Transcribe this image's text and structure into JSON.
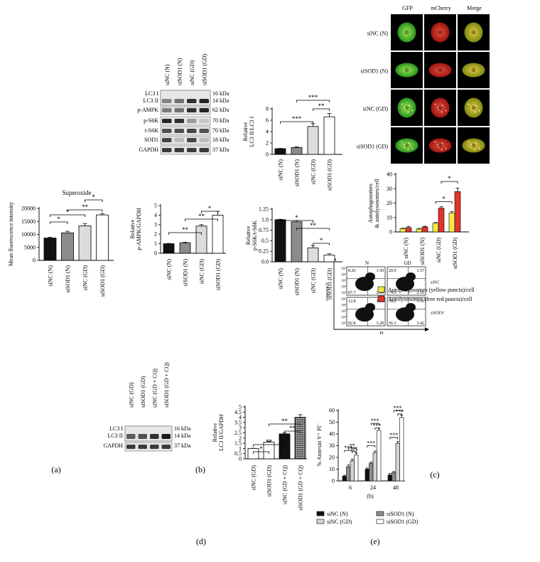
{
  "panel_labels": {
    "a": "(a)",
    "b": "(b)",
    "c": "(c)",
    "d": "(d)",
    "e": "(e)"
  },
  "blot_b": {
    "lanes": [
      "siNC (N)",
      "siSOD1 (N)",
      "siNC (GD)",
      "siSOD1 (GD)"
    ],
    "rows": [
      {
        "protein": "LC3 I",
        "kda": "16 kDa"
      },
      {
        "protein": "LC3 II",
        "kda": "14 kDa"
      },
      {
        "protein": "p-AMPK",
        "kda": "62 kDa"
      },
      {
        "protein": "p-S6K",
        "kda": "70 kDa"
      },
      {
        "protein": "t-S6K",
        "kda": "70 kDa"
      },
      {
        "protein": "SOD1",
        "kda": "18 kDa"
      },
      {
        "protein": "GAPDH",
        "kda": "37 kDa"
      }
    ]
  },
  "blot_d": {
    "lanes": [
      "siNC (GD)",
      "siSOD1 (GD)",
      "siNC (GD + CQ)",
      "siSOD1 (GD + CQ)"
    ],
    "rows": [
      {
        "protein": "LC3 I",
        "kda": "16 kDa"
      },
      {
        "protein": "LC3 II",
        "kda": "14 kDa"
      },
      {
        "protein": "GAPDH",
        "kda": "37 kDa"
      }
    ]
  },
  "microscopy_c": {
    "columns": [
      "GFP",
      "mCherry",
      "Merge"
    ],
    "rows": [
      "siNC (N)",
      "siSOD1 (N)",
      "siNC (GD)",
      "siSOD1 (GD)"
    ]
  },
  "flow_e": {
    "x_axis": "PI",
    "y_axis": "Annexin V",
    "columns": [
      "N",
      "GD"
    ],
    "rows": [
      "siNC",
      "siSOD1"
    ],
    "decades": [
      "10⁵",
      "10⁴",
      "10³",
      "10²",
      "10¹"
    ],
    "quadrants": [
      {
        "ul": "8.26",
        "ur": "1.50",
        "ll": "87.7",
        "lr": "2.44"
      },
      {
        "ul": "20.9",
        "ur": "1.57",
        "ll": "74.9",
        "lr": "2.16"
      },
      {
        "ul": "12.8",
        "ur": "1.08",
        "ll": "82.8",
        "lr": "3.28"
      },
      {
        "ul": "39.2",
        "ur": "1.10",
        "ll": "56.3",
        "lr": "3.42"
      }
    ]
  },
  "chart_data": [
    {
      "id": "a",
      "type": "bar",
      "title": "Superoxide",
      "ylabel": "Mean fluorescence intensity",
      "categories": [
        "siNC (N)",
        "siSOD1 (N)",
        "siNC (GD)",
        "siSOD1 (GD)"
      ],
      "values": [
        8600,
        10600,
        13300,
        17500
      ],
      "errors": [
        300,
        600,
        800,
        500
      ],
      "ylim": [
        0,
        20000
      ],
      "yticks": [
        "0",
        "5000",
        "10000",
        "15000",
        "20000"
      ],
      "fills": [
        "#111111",
        "#8c8c8c",
        "#dcdcdc",
        "#ffffff"
      ],
      "significance": [
        {
          "from": 0,
          "to": 1,
          "label": "*"
        },
        {
          "from": 0,
          "to": 2,
          "label": "*"
        },
        {
          "from": 1,
          "to": 3,
          "label": "**"
        },
        {
          "from": 2,
          "to": 3,
          "label": "*"
        }
      ]
    },
    {
      "id": "b1",
      "type": "bar",
      "ylabel": "Relative LC3 II/LC3 I",
      "categories": [
        "siNC (N)",
        "siSOD1 (N)",
        "siNC (GD)",
        "siSOD1 (GD)"
      ],
      "values": [
        1.0,
        1.2,
        4.9,
        6.6
      ],
      "errors": [
        0.05,
        0.1,
        0.5,
        0.6
      ],
      "ylim": [
        0,
        8
      ],
      "yticks": [
        "0",
        "2",
        "4",
        "6",
        "8"
      ],
      "fills": [
        "#111111",
        "#8c8c8c",
        "#dcdcdc",
        "#ffffff"
      ],
      "significance": [
        {
          "from": 0,
          "to": 2,
          "label": "***"
        },
        {
          "from": 2,
          "to": 3,
          "label": "**"
        },
        {
          "from": 1,
          "to": 3,
          "label": "***"
        }
      ]
    },
    {
      "id": "b2",
      "type": "bar",
      "ylabel": "Relative p-AMPK/GAPDH",
      "categories": [
        "siNC (N)",
        "siSOD1 (N)",
        "siNC (GD)",
        "siSOD1 (GD)"
      ],
      "values": [
        1.0,
        1.1,
        2.85,
        4.0
      ],
      "errors": [
        0.03,
        0.05,
        0.15,
        0.4
      ],
      "ylim": [
        0,
        5
      ],
      "yticks": [
        "0",
        "1",
        "2",
        "3",
        "4",
        "5"
      ],
      "fills": [
        "#111111",
        "#8c8c8c",
        "#dcdcdc",
        "#ffffff"
      ],
      "significance": [
        {
          "from": 0,
          "to": 2,
          "label": "**"
        },
        {
          "from": 1,
          "to": 3,
          "label": "**"
        },
        {
          "from": 2,
          "to": 3,
          "label": "*"
        }
      ]
    },
    {
      "id": "b3",
      "type": "bar",
      "ylabel": "Relative p-S6K/t-S6K",
      "categories": [
        "siNC (N)",
        "siSOD1 (N)",
        "siNC (GD)",
        "siSOD1 (GD)"
      ],
      "values": [
        1.0,
        0.95,
        0.33,
        0.16
      ],
      "errors": [
        0.01,
        0.03,
        0.05,
        0.03
      ],
      "ylim": [
        0,
        1.25
      ],
      "yticks": [
        "0.0",
        "0.25",
        "0.5",
        "0.75",
        "1.0",
        "1.25"
      ],
      "fills": [
        "#111111",
        "#8c8c8c",
        "#dcdcdc",
        "#ffffff"
      ],
      "significance": [
        {
          "from": 0,
          "to": 2,
          "label": "*"
        },
        {
          "from": 1,
          "to": 3,
          "label": "**"
        },
        {
          "from": 2,
          "to": 3,
          "label": "*"
        }
      ]
    },
    {
      "id": "c",
      "type": "bar",
      "ylabel": "Autophagosomes & autolysosomes/cell",
      "categories": [
        "siNC (N)",
        "siSOD1 (N)",
        "siNC (GD)",
        "siSOD1 (GD)"
      ],
      "series": [
        {
          "name": "Autophagosomes (yellow puncta)/cell",
          "color": "#f2e84a",
          "values": [
            2.2,
            2.0,
            6.0,
            13.2
          ],
          "errors": [
            0.4,
            0.4,
            0.6,
            1.0
          ]
        },
        {
          "name": "Autolysosomes (free red puncta)/cell",
          "color": "#e2342a",
          "values": [
            3.0,
            3.5,
            16.5,
            28.0
          ],
          "errors": [
            0.8,
            0.4,
            1.0,
            2.5
          ]
        }
      ],
      "ylim": [
        0,
        40
      ],
      "yticks": [
        "0",
        "10",
        "20",
        "30",
        "40"
      ],
      "significance": [
        {
          "from": 2,
          "to": 3,
          "label": "*",
          "y": 21
        },
        {
          "from": 2,
          "to": 3,
          "label": "*",
          "y": 35
        }
      ]
    },
    {
      "id": "d",
      "type": "bar",
      "ylabel": "Relative LC3 II/GAPDH",
      "categories": [
        "siNC (GD)",
        "siSOD1 (GD)",
        "siNC (GD + CQ)",
        "siSOD1 (GD + CQ)"
      ],
      "values": [
        1.0,
        1.6,
        2.4,
        4.0
      ],
      "errors": [
        0.02,
        0.08,
        0.1,
        0.25
      ],
      "ylim": [
        0,
        5
      ],
      "yticks": [
        "0",
        "0.5",
        "1",
        "1.5",
        "2",
        "2.5",
        "3",
        "3.5",
        "4",
        "4.5",
        "5"
      ],
      "fills": [
        "#ffffff",
        "#ffffff",
        "#111111",
        "#444444"
      ],
      "significance": [
        {
          "from": 0,
          "to": 1,
          "label": "*"
        },
        {
          "from": 0,
          "to": 2,
          "label": "**"
        },
        {
          "from": 1,
          "to": 3,
          "label": "**"
        },
        {
          "from": 2,
          "to": 3,
          "label": "**"
        }
      ]
    },
    {
      "id": "e",
      "type": "bar",
      "ylabel": "% Annexin V⁺ PI⁻",
      "xlabel": "(h)",
      "categories": [
        "6",
        "24",
        "48"
      ],
      "series": [
        {
          "name": "siNC (N)",
          "color": "#111111",
          "values": [
            4,
            10,
            5
          ],
          "errors": [
            0.8,
            1,
            1.2
          ]
        },
        {
          "name": "siSOD1 (N)",
          "color": "#8c8c8c",
          "values": [
            12,
            15,
            7
          ],
          "errors": [
            1.5,
            1,
            1
          ]
        },
        {
          "name": "siNC (GD)",
          "color": "#d4d4d4",
          "values": [
            17,
            24,
            32
          ],
          "errors": [
            1.5,
            1.5,
            1.5
          ]
        },
        {
          "name": "siSOD1 (GD)",
          "color": "#ffffff",
          "values": [
            22,
            43,
            54
          ],
          "errors": [
            2,
            2,
            2
          ]
        }
      ],
      "ylim": [
        0,
        60
      ],
      "yticks": [
        "0",
        "10",
        "20",
        "30",
        "40",
        "50",
        "60"
      ],
      "significance": [
        {
          "from": 0,
          "to": 2,
          "label": "***",
          "y": 26
        },
        {
          "from": 1,
          "to": 3,
          "label": "**",
          "y": 28
        },
        {
          "from": 2,
          "to": 3,
          "label": "NS",
          "y": 25
        },
        {
          "from": 0,
          "to": 2,
          "label": "***",
          "y": 30
        },
        {
          "from": 1,
          "to": 3,
          "label": "***",
          "y": 49
        },
        {
          "from": 2,
          "to": 3,
          "label": "***",
          "y": 45
        },
        {
          "from": 0,
          "to": 2,
          "label": "***",
          "y": 37
        },
        {
          "from": 1,
          "to": 3,
          "label": "***",
          "y": 60
        },
        {
          "from": 2,
          "to": 3,
          "label": "***",
          "y": 57
        }
      ]
    }
  ]
}
